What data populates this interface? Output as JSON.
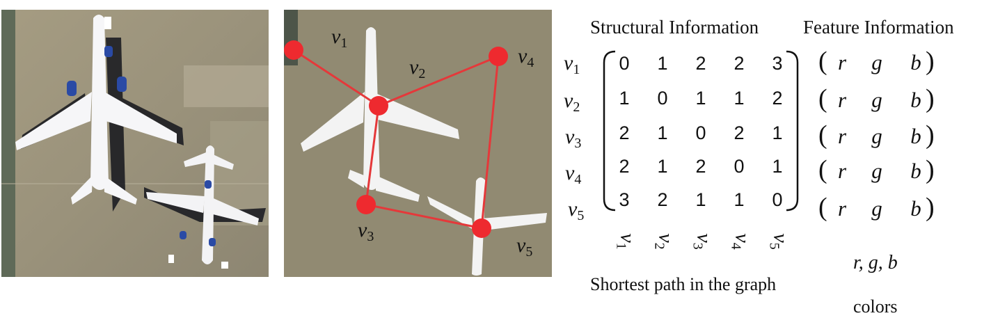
{
  "headings": {
    "structural": "Structural Information",
    "feature": "Feature Information"
  },
  "captions": {
    "shortest_path": "Shortest path in the graph",
    "rgb": "r, g, b",
    "colors": "colors"
  },
  "nodes": [
    {
      "letter": "v",
      "index": "1"
    },
    {
      "letter": "v",
      "index": "2"
    },
    {
      "letter": "v",
      "index": "3"
    },
    {
      "letter": "v",
      "index": "4"
    },
    {
      "letter": "v",
      "index": "5"
    }
  ],
  "matrix": [
    [
      "0",
      "1",
      "2",
      "2",
      "3"
    ],
    [
      "1",
      "0",
      "1",
      "1",
      "2"
    ],
    [
      "2",
      "1",
      "0",
      "2",
      "1"
    ],
    [
      "2",
      "1",
      "2",
      "0",
      "1"
    ],
    [
      "3",
      "2",
      "1",
      "1",
      "0"
    ]
  ],
  "features": [
    [
      "r",
      "g",
      "b"
    ],
    [
      "r",
      "g",
      "b"
    ],
    [
      "r",
      "g",
      "b"
    ],
    [
      "r",
      "g",
      "b"
    ],
    [
      "r",
      "g",
      "b"
    ]
  ],
  "graph_edges": [
    [
      "v1",
      "v2"
    ],
    [
      "v2",
      "v4"
    ],
    [
      "v2",
      "v3"
    ],
    [
      "v3",
      "v5"
    ],
    [
      "v4",
      "v5"
    ]
  ],
  "colors": {
    "node": "#ee2a2f",
    "edge": "#e5383a",
    "segmented_bg": "#918a72",
    "segmented_plane": "#f3f3f3",
    "photo_ground": "#9e9680"
  }
}
